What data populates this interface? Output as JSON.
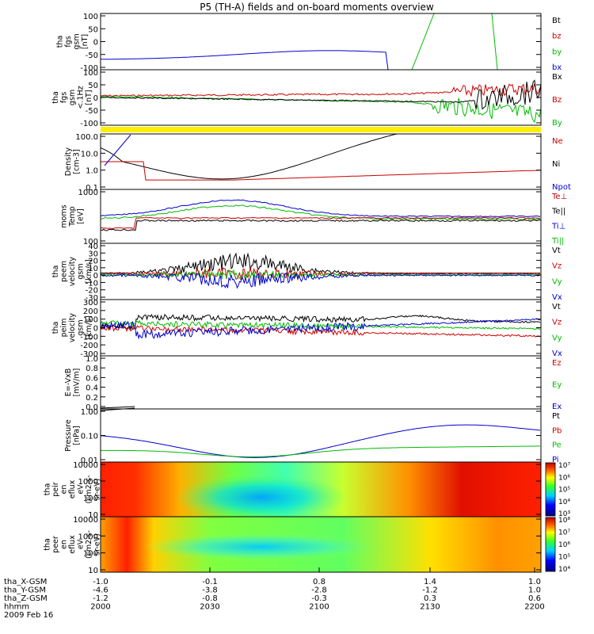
{
  "chart_data": {
    "type": "line",
    "title": "P5 (TH-A) fields and on-board moments overview",
    "time_axis": {
      "rows": [
        {
          "label": "tha_X-GSM",
          "values": [
            "-1.0",
            "-0.1",
            "0.8",
            "1.4",
            "1.0"
          ]
        },
        {
          "label": "tha_Y-GSM",
          "values": [
            "-4.6",
            "-3.8",
            "-2.8",
            "-1.2",
            "1.0"
          ]
        },
        {
          "label": "tha_Z-GSM",
          "values": [
            "-1.2",
            "-0.8",
            "-0.3",
            "0.3",
            "0.6"
          ]
        },
        {
          "label": "hhmm",
          "values": [
            "2000",
            "2030",
            "2100",
            "2130",
            "2200"
          ]
        }
      ],
      "date": "2009 Feb 16"
    },
    "panels": [
      {
        "id": "fgs",
        "ylabel": [
          "tha",
          "fgs",
          "gsm",
          "[nT]"
        ],
        "yticks": [
          "100",
          "50",
          "0",
          "-50",
          "-100"
        ],
        "legend": [
          {
            "name": "Bt",
            "color": "#000000"
          },
          {
            "name": "bz",
            "color": "#cc0000"
          },
          {
            "name": "by",
            "color": "#00bb00"
          },
          {
            "name": "bx",
            "color": "#0000cc"
          }
        ]
      },
      {
        "id": "fgs_lp",
        "ylabel": [
          "tha",
          "fgs",
          "gsm",
          "<.1Hz",
          "[nT]"
        ],
        "yticks": [
          "100",
          "50",
          "0",
          "-50",
          "-100"
        ],
        "legend": [
          {
            "name": "Bx",
            "color": "#000000"
          },
          {
            "name": "Bz",
            "color": "#cc0000"
          },
          {
            "name": "By",
            "color": "#00bb00"
          }
        ]
      },
      {
        "id": "density",
        "ylabel": [
          "Density",
          "[cm-3]"
        ],
        "yticks": [
          "100.0",
          "10.0",
          "1.0",
          "0.1"
        ],
        "scale": "log",
        "legend": [
          {
            "name": "Ne",
            "color": "#cc0000"
          },
          {
            "name": "Ni",
            "color": "#000000"
          },
          {
            "name": "Npot",
            "color": "#0000cc"
          }
        ]
      },
      {
        "id": "temperature",
        "ylabel": [
          "moms",
          "Temp",
          "[eV]"
        ],
        "yticks": [
          "1000",
          "100"
        ],
        "scale": "log",
        "legend": [
          {
            "name": "Te⊥",
            "color": "#cc0000"
          },
          {
            "name": "Te||",
            "color": "#000000"
          },
          {
            "name": "Ti⊥",
            "color": "#0000cc"
          },
          {
            "name": "Ti||",
            "color": "#00bb00"
          }
        ]
      },
      {
        "id": "velocity_e",
        "ylabel": [
          "tha",
          "peem",
          "velocity",
          "gsm",
          "[km/s]"
        ],
        "yticks": [
          "40",
          "30",
          "20",
          "10",
          "0",
          "-10",
          "-20",
          "-30"
        ],
        "legend": [
          {
            "name": "Vt",
            "color": "#000000"
          },
          {
            "name": "Vz",
            "color": "#cc0000"
          },
          {
            "name": "Vy",
            "color": "#00bb00"
          },
          {
            "name": "Vx",
            "color": "#0000cc"
          }
        ]
      },
      {
        "id": "velocity_i",
        "ylabel": [
          "tha",
          "peim",
          "velocity",
          "gsm",
          "[km/s]"
        ],
        "yticks": [
          "300",
          "200",
          "100",
          "0",
          "-100",
          "-200",
          "-300"
        ],
        "legend": [
          {
            "name": "Vt",
            "color": "#000000"
          },
          {
            "name": "Vz",
            "color": "#cc0000"
          },
          {
            "name": "Vy",
            "color": "#00bb00"
          },
          {
            "name": "Vx",
            "color": "#0000cc"
          }
        ]
      },
      {
        "id": "efield",
        "ylabel": [
          "E=-VxB",
          "[mV/m]"
        ],
        "yticks": [
          "1.0",
          "0.8",
          "0.6",
          "0.4",
          "0.2",
          "0.0"
        ],
        "legend": [
          {
            "name": "Ez",
            "color": "#cc0000"
          },
          {
            "name": "Ey",
            "color": "#00bb00"
          },
          {
            "name": "Ex",
            "color": "#0000cc"
          }
        ]
      },
      {
        "id": "pressure",
        "ylabel": [
          "Pressure",
          "[nPa]"
        ],
        "yticks": [
          "1.00",
          "0.10",
          "0.01"
        ],
        "scale": "log",
        "legend": [
          {
            "name": "Pt",
            "color": "#000000"
          },
          {
            "name": "Pb",
            "color": "#cc0000"
          },
          {
            "name": "Pe",
            "color": "#00bb00"
          },
          {
            "name": "Pi",
            "color": "#0000cc"
          }
        ]
      },
      {
        "id": "ion_spec",
        "ylabel": [
          "tha",
          "peir",
          "en",
          "eflux",
          "eV",
          "(cm2-s-",
          "sr-eV)"
        ],
        "yticks": [
          "10000",
          "1000",
          "100",
          "10"
        ],
        "type": "spectrogram",
        "colorbar": [
          "10⁷",
          "10⁶",
          "10⁵",
          "10⁴",
          "10³"
        ]
      },
      {
        "id": "el_spec",
        "ylabel": [
          "tha",
          "peer",
          "en",
          "eflux",
          "eV",
          "(cm2-s-",
          "sr-eV)"
        ],
        "yticks": [
          "10000",
          "1000",
          "100",
          "10"
        ],
        "type": "spectrogram",
        "colorbar": [
          "10⁸",
          "10⁷",
          "10⁶",
          "10⁵",
          "10⁴"
        ]
      }
    ]
  }
}
